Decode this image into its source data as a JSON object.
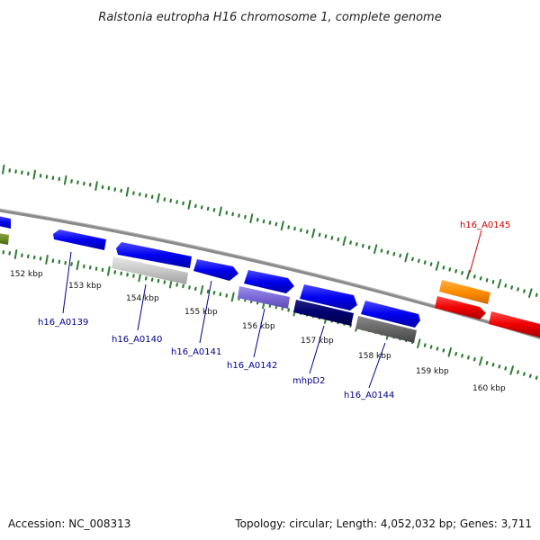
{
  "title": "Ralstonia eutropha H16 chromosome 1, complete genome",
  "footer": {
    "accession": "Accession: NC_008313",
    "summary": "Topology: circular; Length: 4,052,032 bp; Genes: 3,711"
  },
  "colors": {
    "backbone": "#8a8a8a",
    "tick_dots": "#2e7d32",
    "gene_label_default": "#00008b",
    "gene_label_highlight": "#cc0000"
  },
  "ticks": [
    "152 kbp",
    "153 kbp",
    "154 kbp",
    "155 kbp",
    "156 kbp",
    "157 kbp",
    "158 kbp",
    "159 kbp",
    "160 kbp"
  ],
  "gene_labels": [
    {
      "name": "h16_A0139",
      "color": "#00008b"
    },
    {
      "name": "h16_A0140",
      "color": "#00008b"
    },
    {
      "name": "h16_A0141",
      "color": "#00008b"
    },
    {
      "name": "h16_A0142",
      "color": "#00008b"
    },
    {
      "name": "mhpD2",
      "color": "#00008b"
    },
    {
      "name": "h16_A0144",
      "color": "#00008b"
    },
    {
      "name": "h16_A0145",
      "color": "#cc0000"
    }
  ]
}
